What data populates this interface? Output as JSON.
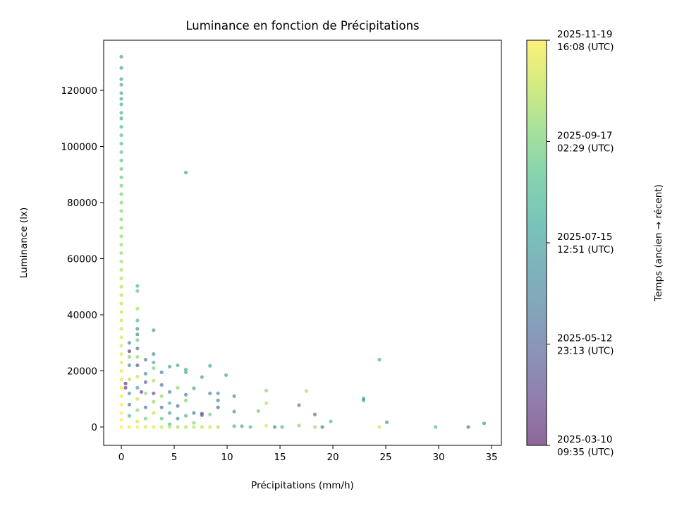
{
  "chart_data": {
    "type": "scatter",
    "title": "Luminance en fonction de Précipitations",
    "xlabel": "Précipitations (mm/h)",
    "ylabel": "Luminance (lx)",
    "xlim": [
      -1.67,
      35.93
    ],
    "ylim": [
      -6541,
      137860
    ],
    "xticks": [
      0,
      5,
      10,
      15,
      20,
      25,
      30,
      35
    ],
    "yticks": [
      0,
      20000,
      40000,
      60000,
      80000,
      100000,
      120000
    ],
    "grid": false,
    "colormap": "viridis",
    "alpha": 0.6,
    "colorbar": {
      "label": "Temps (ancien → récent)",
      "range": [
        "2025-03-10T09:35Z",
        "2025-11-19T16:08Z"
      ],
      "ticks": [
        {
          "line1": "2025-03-10",
          "line2": "09:35 (UTC)"
        },
        {
          "line1": "2025-05-12",
          "line2": "23:13 (UTC)"
        },
        {
          "line1": "2025-07-15",
          "line2": "12:51 (UTC)"
        },
        {
          "line1": "2025-09-17",
          "line2": "02:29 (UTC)"
        },
        {
          "line1": "2025-11-19",
          "line2": "16:08 (UTC)"
        }
      ]
    },
    "points": [
      [
        0,
        132000,
        "2025-07-20"
      ],
      [
        0,
        128000,
        "2025-07-10"
      ],
      [
        0,
        124000,
        "2025-07-25"
      ],
      [
        0,
        122000,
        "2025-07-30"
      ],
      [
        0,
        119000,
        "2025-08-05"
      ],
      [
        0,
        117000,
        "2025-07-15"
      ],
      [
        0,
        115000,
        "2025-08-10"
      ],
      [
        0,
        112000,
        "2025-08-15"
      ],
      [
        0,
        110000,
        "2025-08-01"
      ],
      [
        0,
        107000,
        "2025-08-20"
      ],
      [
        0,
        104000,
        "2025-08-25"
      ],
      [
        0,
        101000,
        "2025-08-28"
      ],
      [
        0,
        98000,
        "2025-09-01"
      ],
      [
        0,
        95000,
        "2025-09-05"
      ],
      [
        0,
        92000,
        "2025-09-08"
      ],
      [
        0,
        89000,
        "2025-09-10"
      ],
      [
        0,
        86000,
        "2025-09-14"
      ],
      [
        0,
        83000,
        "2025-09-18"
      ],
      [
        0,
        80000,
        "2025-09-22"
      ],
      [
        0,
        77000,
        "2025-09-25"
      ],
      [
        0,
        74000,
        "2025-09-28"
      ],
      [
        0,
        71000,
        "2025-10-01"
      ],
      [
        0,
        68000,
        "2025-10-03"
      ],
      [
        0,
        65000,
        "2025-10-05"
      ],
      [
        0,
        62000,
        "2025-10-08"
      ],
      [
        0,
        59000,
        "2025-10-10"
      ],
      [
        0,
        56000,
        "2025-10-12"
      ],
      [
        0,
        53000,
        "2025-10-15"
      ],
      [
        0,
        50000,
        "2025-10-17"
      ],
      [
        0,
        47000,
        "2025-10-19"
      ],
      [
        0,
        44000,
        "2025-10-22"
      ],
      [
        0,
        41000,
        "2025-10-25"
      ],
      [
        0,
        38000,
        "2025-10-28"
      ],
      [
        0,
        35000,
        "2025-10-30"
      ],
      [
        0,
        32000,
        "2025-11-02"
      ],
      [
        0,
        29000,
        "2025-11-04"
      ],
      [
        0,
        26000,
        "2025-11-06"
      ],
      [
        0,
        23000,
        "2025-11-08"
      ],
      [
        0,
        20000,
        "2025-11-10"
      ],
      [
        0,
        17000,
        "2025-11-12"
      ],
      [
        0,
        14000,
        "2025-11-14"
      ],
      [
        0,
        11000,
        "2025-11-15"
      ],
      [
        0,
        8000,
        "2025-11-16"
      ],
      [
        0,
        5000,
        "2025-11-17"
      ],
      [
        0,
        2500,
        "2025-11-18"
      ],
      [
        0,
        0,
        "2025-11-19"
      ],
      [
        0.4,
        15500,
        "2025-03-25"
      ],
      [
        0.4,
        14000,
        "2025-04-01"
      ],
      [
        0.76,
        30000,
        "2025-06-10"
      ],
      [
        0.76,
        27000,
        "2025-03-20"
      ],
      [
        0.76,
        25000,
        "2025-09-20"
      ],
      [
        0.76,
        22000,
        "2025-06-20"
      ],
      [
        0.76,
        17000,
        "2025-10-15"
      ],
      [
        0.76,
        12000,
        "2025-07-01"
      ],
      [
        0.76,
        8000,
        "2025-05-20"
      ],
      [
        0.76,
        4000,
        "2025-08-15"
      ],
      [
        0.76,
        0,
        "2025-11-10"
      ],
      [
        1.52,
        50300,
        "2025-08-10"
      ],
      [
        1.52,
        48500,
        "2025-09-01"
      ],
      [
        1.52,
        42200,
        "2025-10-10"
      ],
      [
        1.52,
        38000,
        "2025-08-20"
      ],
      [
        1.52,
        35000,
        "2025-07-01"
      ],
      [
        1.52,
        33000,
        "2025-06-15"
      ],
      [
        1.52,
        31000,
        "2025-09-10"
      ],
      [
        1.52,
        28000,
        "2025-05-20"
      ],
      [
        1.52,
        25000,
        "2025-10-01"
      ],
      [
        1.52,
        22000,
        "2025-04-20"
      ],
      [
        1.52,
        18000,
        "2025-10-20"
      ],
      [
        1.52,
        14000,
        "2025-07-20"
      ],
      [
        1.52,
        10000,
        "2025-10-25"
      ],
      [
        1.52,
        6000,
        "2025-09-25"
      ],
      [
        1.52,
        2000,
        "2025-11-01"
      ],
      [
        1.52,
        0,
        "2025-11-15"
      ],
      [
        1.9,
        12500,
        "2025-03-30"
      ],
      [
        2.29,
        24000,
        "2025-06-01"
      ],
      [
        2.29,
        19000,
        "2025-06-25"
      ],
      [
        2.29,
        16000,
        "2025-05-10"
      ],
      [
        2.29,
        12000,
        "2025-10-05"
      ],
      [
        2.29,
        7000,
        "2025-05-25"
      ],
      [
        2.29,
        3000,
        "2025-09-15"
      ],
      [
        2.29,
        0,
        "2025-11-05"
      ],
      [
        3.05,
        34500,
        "2025-07-10"
      ],
      [
        3.05,
        26000,
        "2025-06-20"
      ],
      [
        3.05,
        23000,
        "2025-08-05"
      ],
      [
        3.05,
        21000,
        "2025-09-20"
      ],
      [
        3.05,
        16500,
        "2025-10-15"
      ],
      [
        3.05,
        12000,
        "2025-04-15"
      ],
      [
        3.05,
        9000,
        "2025-09-30"
      ],
      [
        3.05,
        5000,
        "2025-10-20"
      ],
      [
        3.05,
        0,
        "2025-11-08"
      ],
      [
        3.81,
        19500,
        "2025-06-05"
      ],
      [
        3.81,
        15000,
        "2025-05-30"
      ],
      [
        3.81,
        11000,
        "2025-10-01"
      ],
      [
        3.81,
        7000,
        "2025-05-25"
      ],
      [
        3.81,
        3000,
        "2025-09-01"
      ],
      [
        3.81,
        0,
        "2025-10-30"
      ],
      [
        4.57,
        21500,
        "2025-07-15"
      ],
      [
        4.57,
        12500,
        "2025-06-10"
      ],
      [
        4.57,
        8500,
        "2025-08-10"
      ],
      [
        4.57,
        5000,
        "2025-07-20"
      ],
      [
        4.57,
        1000,
        "2025-08-25"
      ],
      [
        4.57,
        0,
        "2025-10-25"
      ],
      [
        5.33,
        22000,
        "2025-07-25"
      ],
      [
        5.33,
        14000,
        "2025-09-25"
      ],
      [
        5.33,
        7500,
        "2025-05-15"
      ],
      [
        5.33,
        3000,
        "2025-07-01"
      ],
      [
        5.33,
        0,
        "2025-10-10"
      ],
      [
        6.1,
        90700,
        "2025-07-20"
      ],
      [
        6.1,
        20500,
        "2025-08-01"
      ],
      [
        6.1,
        19500,
        "2025-07-25"
      ],
      [
        6.1,
        11500,
        "2025-06-01"
      ],
      [
        6.1,
        9500,
        "2025-09-20"
      ],
      [
        6.1,
        4000,
        "2025-08-20"
      ],
      [
        6.1,
        0,
        "2025-10-15"
      ],
      [
        6.86,
        13800,
        "2025-07-15"
      ],
      [
        6.86,
        5000,
        "2025-06-05"
      ],
      [
        6.86,
        1500,
        "2025-09-25"
      ],
      [
        6.86,
        0,
        "2025-10-20"
      ],
      [
        7.62,
        17800,
        "2025-07-25"
      ],
      [
        7.62,
        4800,
        "2025-04-10"
      ],
      [
        7.62,
        4200,
        "2025-05-20"
      ],
      [
        7.62,
        0,
        "2025-10-20"
      ],
      [
        8.38,
        21800,
        "2025-07-20"
      ],
      [
        8.38,
        12000,
        "2025-06-10"
      ],
      [
        8.38,
        4500,
        "2025-09-15"
      ],
      [
        8.38,
        0,
        "2025-10-25"
      ],
      [
        9.14,
        12000,
        "2025-07-05"
      ],
      [
        9.14,
        9500,
        "2025-06-15"
      ],
      [
        9.14,
        7000,
        "2025-05-05"
      ],
      [
        9.14,
        0,
        "2025-10-15"
      ],
      [
        9.9,
        18500,
        "2025-07-25"
      ],
      [
        10.67,
        11000,
        "2025-06-20"
      ],
      [
        10.67,
        5500,
        "2025-07-10"
      ],
      [
        10.67,
        300,
        "2025-08-10"
      ],
      [
        11.4,
        300,
        "2025-07-20"
      ],
      [
        12.2,
        0,
        "2025-08-20"
      ],
      [
        12.95,
        5700,
        "2025-09-10"
      ],
      [
        13.7,
        13000,
        "2025-09-25"
      ],
      [
        13.7,
        8500,
        "2025-10-15"
      ],
      [
        13.7,
        500,
        "2025-11-05"
      ],
      [
        14.5,
        0,
        "2025-06-10"
      ],
      [
        15.2,
        0,
        "2025-08-20"
      ],
      [
        16.8,
        7800,
        "2025-06-01"
      ],
      [
        16.8,
        500,
        "2025-09-25"
      ],
      [
        17.5,
        12800,
        "2025-10-10"
      ],
      [
        18.3,
        0,
        "2025-10-05"
      ],
      [
        18.3,
        4500,
        "2025-05-20"
      ],
      [
        19.0,
        0,
        "2025-06-01"
      ],
      [
        19.8,
        2000,
        "2025-08-20"
      ],
      [
        22.9,
        10200,
        "2025-07-10"
      ],
      [
        22.9,
        9500,
        "2025-07-15"
      ],
      [
        24.4,
        24000,
        "2025-08-01"
      ],
      [
        24.4,
        0,
        "2025-10-25"
      ],
      [
        25.1,
        1700,
        "2025-07-05"
      ],
      [
        29.7,
        0,
        "2025-08-25"
      ],
      [
        32.8,
        0,
        "2025-06-01"
      ],
      [
        34.3,
        1300,
        "2025-07-01"
      ]
    ]
  }
}
